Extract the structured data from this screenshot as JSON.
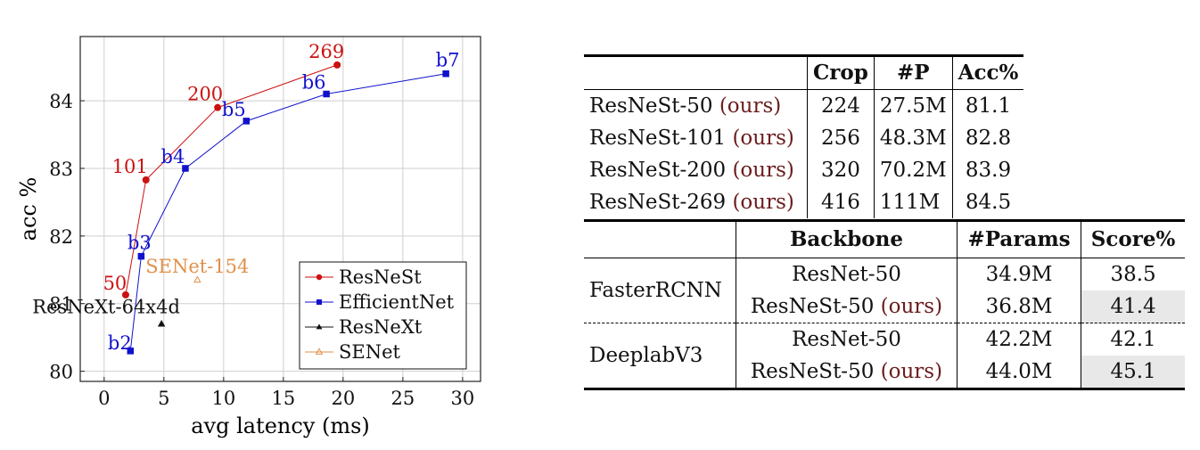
{
  "chart_data": {
    "type": "line",
    "xlabel": "avg latency (ms)",
    "ylabel": "acc %",
    "xlim": [
      -2,
      31.5
    ],
    "ylim": [
      79.85,
      84.95
    ],
    "xticks": [
      "0",
      "5",
      "10",
      "15",
      "20",
      "25",
      "30"
    ],
    "yticks": [
      "80",
      "81",
      "82",
      "83",
      "84"
    ],
    "grid": true,
    "legend_position": "bottom-right",
    "series": [
      {
        "name": "ResNeSt",
        "color": "#cc1111",
        "marker": "circle",
        "connected": true,
        "points": [
          {
            "x": 1.8,
            "y": 81.13,
            "label": "50"
          },
          {
            "x": 3.5,
            "y": 82.83,
            "label": "101"
          },
          {
            "x": 9.5,
            "y": 83.9,
            "label": "200"
          },
          {
            "x": 19.5,
            "y": 84.53,
            "label": "269"
          }
        ]
      },
      {
        "name": "EfficientNet",
        "color": "#1111cc",
        "marker": "square",
        "connected": true,
        "points": [
          {
            "x": 2.2,
            "y": 80.3,
            "label": "b2"
          },
          {
            "x": 3.1,
            "y": 81.7,
            "label": "b3"
          },
          {
            "x": 6.8,
            "y": 83.0,
            "label": "b4"
          },
          {
            "x": 11.9,
            "y": 83.7,
            "label": "b5"
          },
          {
            "x": 18.6,
            "y": 84.1,
            "label": "b6"
          },
          {
            "x": 28.6,
            "y": 84.4,
            "label": "b7"
          }
        ]
      },
      {
        "name": "ResNeXt",
        "color": "#111111",
        "marker": "triangle",
        "connected": false,
        "points": [
          {
            "x": 4.8,
            "y": 80.7,
            "label": "ResNeXt-64x4d"
          }
        ]
      },
      {
        "name": "SENet",
        "color": "#e0904a",
        "marker": "triangle-open",
        "connected": false,
        "points": [
          {
            "x": 7.8,
            "y": 81.35,
            "label": "SENet-154"
          }
        ]
      }
    ]
  },
  "table1": {
    "headers": [
      "",
      "Crop",
      "#P",
      "Acc%"
    ],
    "rows": [
      {
        "model": "ResNeSt-50 ",
        "ours": "(ours)",
        "crop": "224",
        "params": "27.5M",
        "acc": "81.1"
      },
      {
        "model": "ResNeSt-101 ",
        "ours": "(ours)",
        "crop": "256",
        "params": "48.3M",
        "acc": "82.8"
      },
      {
        "model": "ResNeSt-200 ",
        "ours": "(ours)",
        "crop": "320",
        "params": "70.2M",
        "acc": "83.9"
      },
      {
        "model": "ResNeSt-269 ",
        "ours": "(ours)",
        "crop": "416",
        "params": "111M",
        "acc": "84.5"
      }
    ]
  },
  "table2": {
    "headers": [
      "",
      "Backbone",
      "#Params",
      "Score%"
    ],
    "groups": [
      {
        "name": "FasterRCNN",
        "rows": [
          {
            "backbone": "ResNet-50",
            "ours": "",
            "params": "34.9M",
            "score": "38.5"
          },
          {
            "backbone": "ResNeSt-50 ",
            "ours": "(ours)",
            "params": "36.8M",
            "score": "41.4"
          }
        ]
      },
      {
        "name": "DeeplabV3",
        "rows": [
          {
            "backbone": "ResNet-50",
            "ours": "",
            "params": "42.2M",
            "score": "42.1"
          },
          {
            "backbone": "ResNeSt-50 ",
            "ours": "(ours)",
            "params": "44.0M",
            "score": "45.1"
          }
        ]
      }
    ]
  }
}
